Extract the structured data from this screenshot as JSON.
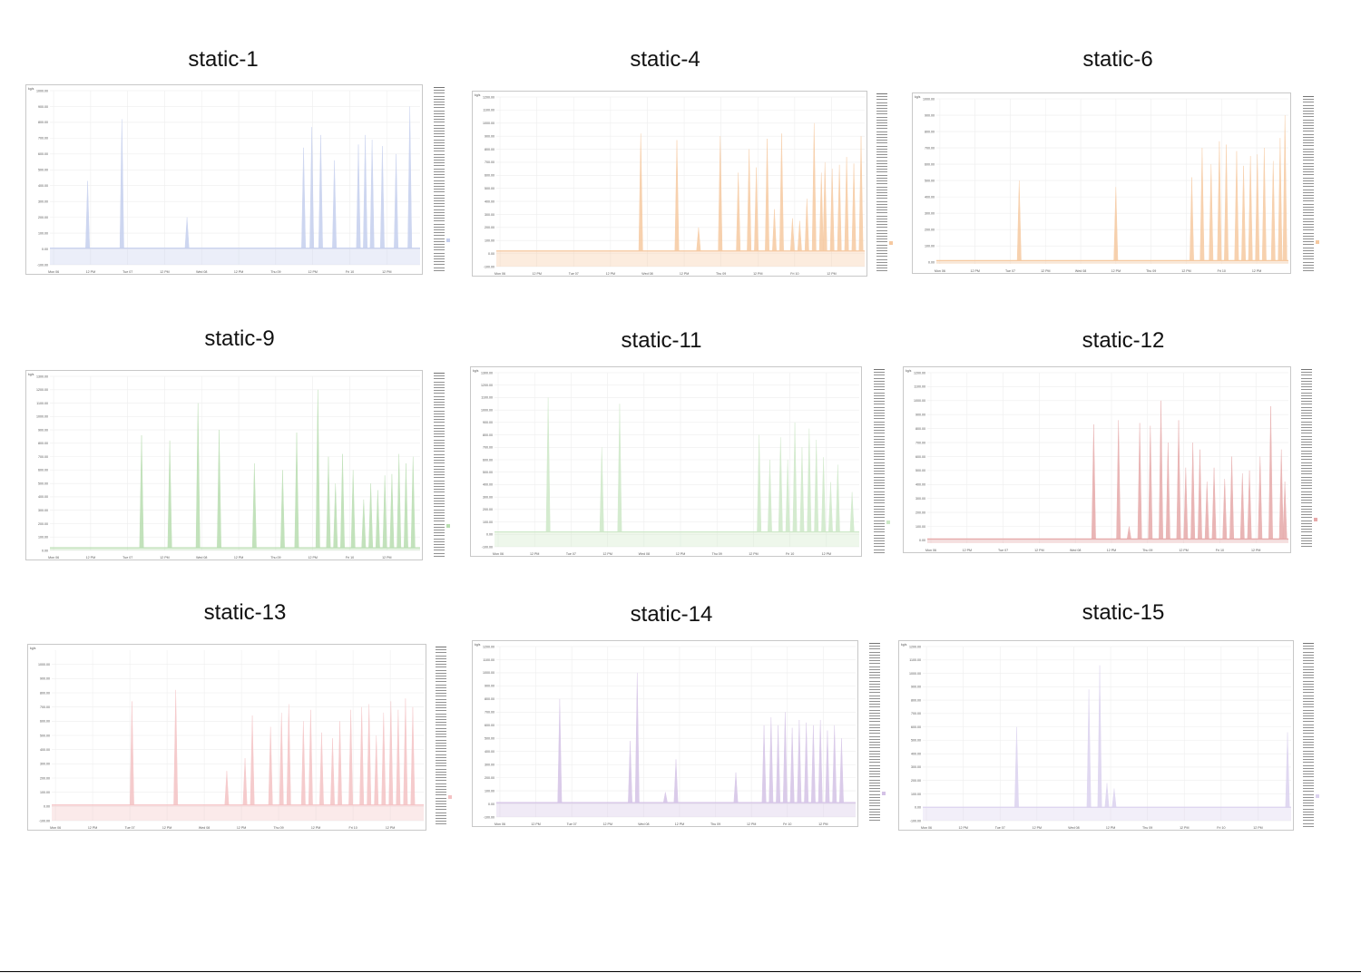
{
  "chart_data": [
    {
      "type": "area",
      "title": "static-1",
      "color": "#c5cfee",
      "unit_label": "kg/s",
      "ylim": [
        -100,
        1000
      ],
      "y_ticks": [
        "1000.00",
        "900.00",
        "800.00",
        "700.00",
        "600.00",
        "500.00",
        "400.00",
        "300.00",
        "200.00",
        "100.00",
        "0.00",
        "-100.00"
      ],
      "x_ticks": [
        "Mon 06",
        "12 PM",
        "Tue 07",
        "12 PM",
        "Wed 08",
        "12 PM",
        "Thu 09",
        "12 PM",
        "Fri 10",
        "12 PM"
      ],
      "xlim": [
        0,
        5.4
      ],
      "base": 5,
      "spikes": [
        [
          0.55,
          430
        ],
        [
          1.05,
          820
        ],
        [
          2.0,
          200
        ],
        [
          3.7,
          640
        ],
        [
          3.82,
          770
        ],
        [
          3.95,
          720
        ],
        [
          4.15,
          560
        ],
        [
          4.5,
          660
        ],
        [
          4.6,
          720
        ],
        [
          4.7,
          690
        ],
        [
          4.85,
          650
        ],
        [
          5.05,
          600
        ],
        [
          5.25,
          900
        ]
      ],
      "legend_count": 70
    },
    {
      "type": "area",
      "title": "static-4",
      "color": "#f6c9a0",
      "unit_label": "kg/s",
      "ylim": [
        -100,
        1200
      ],
      "y_ticks": [
        "1200.00",
        "1100.00",
        "1000.00",
        "900.00",
        "800.00",
        "700.00",
        "600.00",
        "500.00",
        "400.00",
        "300.00",
        "200.00",
        "100.00",
        "0.00",
        "-100.00"
      ],
      "x_ticks": [
        "Mon 06",
        "12 PM",
        "Tue 07",
        "12 PM",
        "Wed 08",
        "12 PM",
        "Thu 09",
        "12 PM",
        "Fri 10",
        "12 PM"
      ],
      "xlim": [
        0,
        5.1
      ],
      "base": 20,
      "spikes": [
        [
          2.0,
          920
        ],
        [
          2.5,
          870
        ],
        [
          2.8,
          200
        ],
        [
          3.1,
          900
        ],
        [
          3.35,
          620
        ],
        [
          3.5,
          800
        ],
        [
          3.6,
          660
        ],
        [
          3.75,
          880
        ],
        [
          3.85,
          340
        ],
        [
          3.95,
          920
        ],
        [
          4.1,
          270
        ],
        [
          4.2,
          250
        ],
        [
          4.3,
          420
        ],
        [
          4.4,
          1000
        ],
        [
          4.5,
          620
        ],
        [
          4.55,
          700
        ],
        [
          4.65,
          650
        ],
        [
          4.75,
          680
        ],
        [
          4.85,
          740
        ],
        [
          4.95,
          690
        ],
        [
          5.05,
          900
        ]
      ],
      "legend_count": 70
    },
    {
      "type": "area",
      "title": "static-6",
      "color": "#f6c9a0",
      "unit_label": "kg/s",
      "ylim": [
        -10,
        1000
      ],
      "y_ticks": [
        "1000.00",
        "900.00",
        "800.00",
        "700.00",
        "600.00",
        "500.00",
        "400.00",
        "300.00",
        "200.00",
        "100.00",
        "0.00"
      ],
      "x_ticks": [
        "Mon 06",
        "12 PM",
        "Tue 07",
        "12 PM",
        "Wed 08",
        "12 PM",
        "Thu 09",
        "12 PM",
        "Fri 10",
        "12 PM"
      ],
      "xlim": [
        0,
        5.1
      ],
      "base": 10,
      "spikes": [
        [
          1.2,
          500
        ],
        [
          2.6,
          460
        ],
        [
          3.7,
          520
        ],
        [
          3.85,
          700
        ],
        [
          3.98,
          600
        ],
        [
          4.1,
          740
        ],
        [
          4.2,
          720
        ],
        [
          4.35,
          680
        ],
        [
          4.45,
          590
        ],
        [
          4.55,
          650
        ],
        [
          4.65,
          660
        ],
        [
          4.75,
          700
        ],
        [
          4.88,
          620
        ],
        [
          4.98,
          760
        ],
        [
          5.05,
          900
        ]
      ],
      "legend_count": 70
    },
    {
      "type": "area",
      "title": "static-9",
      "color": "#b8ddb0",
      "unit_label": "kg/s",
      "ylim": [
        0,
        1300
      ],
      "y_ticks": [
        "1300.00",
        "1200.00",
        "1100.00",
        "1000.00",
        "900.00",
        "800.00",
        "700.00",
        "600.00",
        "500.00",
        "400.00",
        "300.00",
        "200.00",
        "100.00",
        "0.00"
      ],
      "x_ticks": [
        "Mon 06",
        "12 PM",
        "Tue 07",
        "12 PM",
        "Wed 08",
        "12 PM",
        "Thu 09",
        "12 PM",
        "Fri 10",
        "12 PM"
      ],
      "xlim": [
        0,
        5.25
      ],
      "base": 20,
      "spikes": [
        [
          1.3,
          860
        ],
        [
          1.7,
          820
        ],
        [
          2.1,
          1100
        ],
        [
          2.4,
          900
        ],
        [
          2.9,
          650
        ],
        [
          3.3,
          600
        ],
        [
          3.5,
          880
        ],
        [
          3.8,
          1200
        ],
        [
          3.95,
          700
        ],
        [
          4.05,
          500
        ],
        [
          4.15,
          720
        ],
        [
          4.3,
          600
        ],
        [
          4.45,
          380
        ],
        [
          4.55,
          500
        ],
        [
          4.65,
          450
        ],
        [
          4.75,
          560
        ],
        [
          4.85,
          570
        ],
        [
          4.95,
          720
        ],
        [
          5.05,
          650
        ],
        [
          5.15,
          700
        ]
      ],
      "legend_count": 70
    },
    {
      "type": "area",
      "title": "static-11",
      "color": "#cde8c7",
      "unit_label": "kg/s",
      "ylim": [
        -100,
        1300
      ],
      "y_ticks": [
        "1300.00",
        "1200.00",
        "1100.00",
        "1000.00",
        "900.00",
        "800.00",
        "700.00",
        "600.00",
        "500.00",
        "400.00",
        "300.00",
        "200.00",
        "100.00",
        "0.00",
        "-100.00"
      ],
      "x_ticks": [
        "Mon 06",
        "12 PM",
        "Tue 07",
        "12 PM",
        "Wed 08",
        "12 PM",
        "Thu 09",
        "12 PM",
        "Fri 10",
        "12 PM"
      ],
      "xlim": [
        0,
        5.1
      ],
      "base": 20,
      "spikes": [
        [
          0.75,
          1100
        ],
        [
          1.5,
          700
        ],
        [
          1.75,
          1050
        ],
        [
          3.7,
          800
        ],
        [
          3.85,
          600
        ],
        [
          4.0,
          780
        ],
        [
          4.1,
          600
        ],
        [
          4.2,
          900
        ],
        [
          4.3,
          700
        ],
        [
          4.4,
          850
        ],
        [
          4.5,
          760
        ],
        [
          4.6,
          620
        ],
        [
          4.7,
          420
        ],
        [
          4.8,
          560
        ],
        [
          5.0,
          340
        ]
      ],
      "legend_count": 70
    },
    {
      "type": "area",
      "title": "static-12",
      "color": "#e6a9a9",
      "unit_label": "kg/s",
      "ylim": [
        -20,
        1200
      ],
      "y_ticks": [
        "1200.00",
        "1100.00",
        "1000.00",
        "900.00",
        "800.00",
        "700.00",
        "600.00",
        "500.00",
        "400.00",
        "300.00",
        "200.00",
        "100.00",
        "0.00"
      ],
      "x_ticks": [
        "Mon 06",
        "12 PM",
        "Tue 07",
        "12 PM",
        "Wed 08",
        "12 PM",
        "Thu 09",
        "12 PM",
        "Fri 10",
        "12 PM"
      ],
      "xlim": [
        0,
        5.1
      ],
      "base": 10,
      "spikes": [
        [
          2.35,
          830
        ],
        [
          2.7,
          860
        ],
        [
          2.85,
          100
        ],
        [
          3.0,
          840
        ],
        [
          3.15,
          820
        ],
        [
          3.3,
          1000
        ],
        [
          3.4,
          700
        ],
        [
          3.55,
          860
        ],
        [
          3.65,
          520
        ],
        [
          3.75,
          700
        ],
        [
          3.85,
          650
        ],
        [
          3.95,
          420
        ],
        [
          4.05,
          520
        ],
        [
          4.2,
          440
        ],
        [
          4.3,
          600
        ],
        [
          4.45,
          480
        ],
        [
          4.55,
          500
        ],
        [
          4.7,
          600
        ],
        [
          4.85,
          960
        ],
        [
          5.0,
          650
        ],
        [
          5.05,
          420
        ]
      ],
      "legend_count": 70
    },
    {
      "type": "area",
      "title": "static-13",
      "color": "#f4c2c4",
      "unit_label": "kg/s",
      "ylim": [
        -100,
        1100
      ],
      "y_ticks": [
        "1000.00",
        "900.00",
        "800.00",
        "700.00",
        "600.00",
        "500.00",
        "400.00",
        "300.00",
        "200.00",
        "100.00",
        "0.00",
        "-100.00"
      ],
      "x_ticks": [
        "Mon 06",
        "12 PM",
        "Tue 07",
        "12 PM",
        "Wed 08",
        "12 PM",
        "Thu 09",
        "12 PM",
        "Fri 10",
        "12 PM"
      ],
      "xlim": [
        0,
        5.1
      ],
      "base": 10,
      "spikes": [
        [
          1.1,
          740
        ],
        [
          1.7,
          820
        ],
        [
          2.4,
          250
        ],
        [
          2.65,
          340
        ],
        [
          2.75,
          640
        ],
        [
          3.0,
          560
        ],
        [
          3.15,
          660
        ],
        [
          3.25,
          720
        ],
        [
          3.45,
          600
        ],
        [
          3.55,
          680
        ],
        [
          3.7,
          520
        ],
        [
          3.85,
          480
        ],
        [
          3.95,
          600
        ],
        [
          4.1,
          680
        ],
        [
          4.25,
          700
        ],
        [
          4.35,
          720
        ],
        [
          4.45,
          500
        ],
        [
          4.55,
          660
        ],
        [
          4.65,
          740
        ],
        [
          4.75,
          680
        ],
        [
          4.85,
          760
        ],
        [
          4.95,
          700
        ]
      ],
      "legend_count": 70
    },
    {
      "type": "area",
      "title": "static-14",
      "color": "#d4c2e6",
      "unit_label": "kg/s",
      "ylim": [
        -100,
        1200
      ],
      "y_ticks": [
        "1200.00",
        "1100.00",
        "1000.00",
        "900.00",
        "800.00",
        "700.00",
        "600.00",
        "500.00",
        "400.00",
        "300.00",
        "200.00",
        "100.00",
        "0.00",
        "-100.00"
      ],
      "x_ticks": [
        "Mon 06",
        "12 PM",
        "Tue 07",
        "12 PM",
        "Wed 08",
        "12 PM",
        "Thu 09",
        "12 PM",
        "Fri 10",
        "12 PM"
      ],
      "xlim": [
        0,
        5.1
      ],
      "base": 10,
      "spikes": [
        [
          0.9,
          800
        ],
        [
          2.0,
          1000
        ],
        [
          1.9,
          480
        ],
        [
          2.4,
          90
        ],
        [
          2.55,
          340
        ],
        [
          3.4,
          240
        ],
        [
          3.8,
          600
        ],
        [
          3.9,
          660
        ],
        [
          4.0,
          600
        ],
        [
          4.1,
          700
        ],
        [
          4.2,
          580
        ],
        [
          4.3,
          640
        ],
        [
          4.4,
          620
        ],
        [
          4.5,
          600
        ],
        [
          4.6,
          640
        ],
        [
          4.7,
          560
        ],
        [
          4.8,
          600
        ],
        [
          4.9,
          500
        ]
      ],
      "legend_count": 70
    },
    {
      "type": "area",
      "title": "static-15",
      "color": "#dbd2ef",
      "unit_label": "kg/s",
      "ylim": [
        -100,
        1200
      ],
      "y_ticks": [
        "1200.00",
        "1100.00",
        "1000.00",
        "900.00",
        "800.00",
        "700.00",
        "600.00",
        "500.00",
        "400.00",
        "300.00",
        "200.00",
        "100.00",
        "0.00",
        "-100.00"
      ],
      "x_ticks": [
        "Mon 06",
        "12 PM",
        "Tue 07",
        "12 PM",
        "Wed 08",
        "12 PM",
        "Thu 09",
        "12 PM",
        "Fri 10",
        "12 PM"
      ],
      "xlim": [
        0,
        5.1
      ],
      "base": 0,
      "spikes": [
        [
          1.3,
          600
        ],
        [
          2.3,
          880
        ],
        [
          2.45,
          1060
        ],
        [
          2.55,
          180
        ],
        [
          2.65,
          140
        ],
        [
          5.05,
          560
        ]
      ],
      "legend_count": 70
    }
  ]
}
